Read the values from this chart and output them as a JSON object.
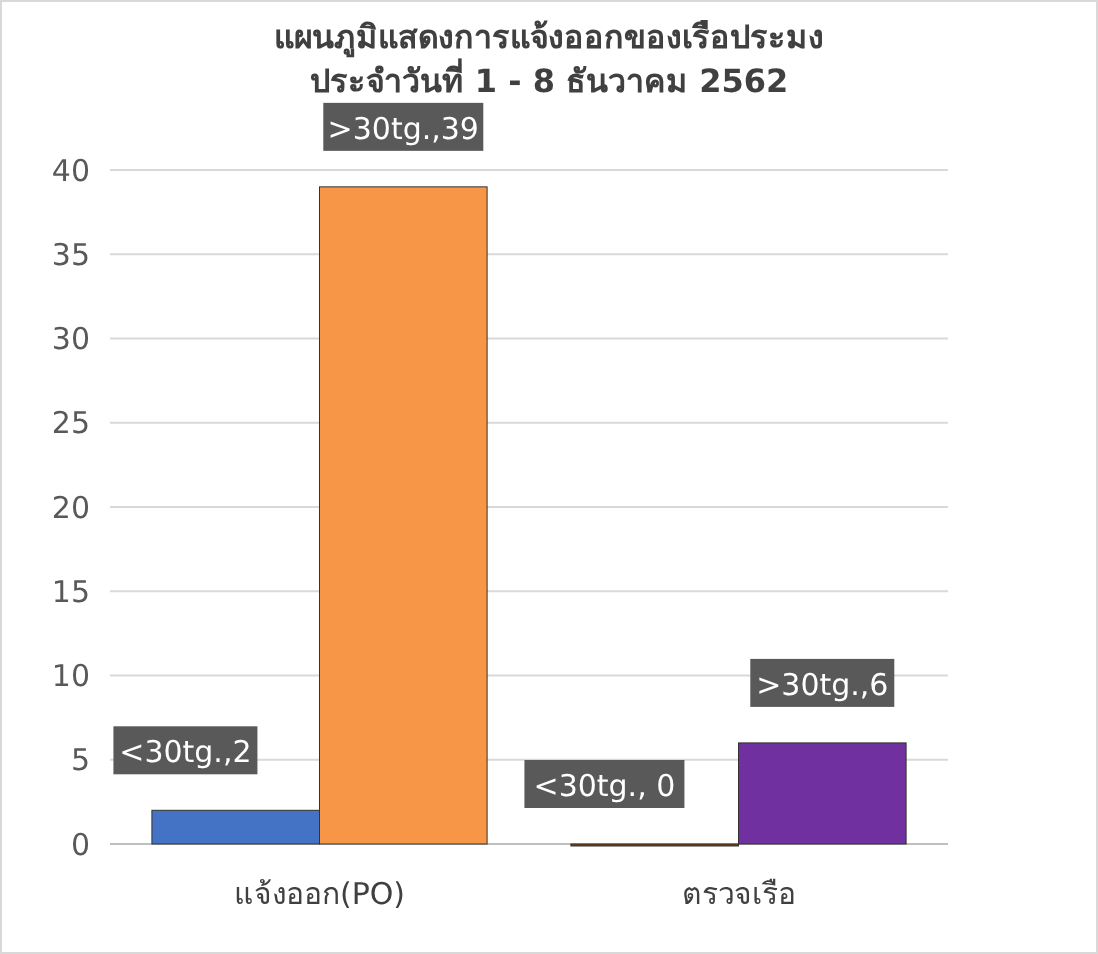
{
  "chart_data": {
    "type": "bar",
    "title": "แผนภูมิแสดงการแจ้งออกของเรือประมง\nประจำวันที่  1 - 8 ธันวาคม  2562",
    "categories": [
      "แจ้งออก(PO)",
      "ตรวจเรือ"
    ],
    "series": [
      {
        "colors": [
          "#4472c4",
          "#843c0c"
        ],
        "values": [
          2,
          0
        ],
        "value_labels": [
          "<30tg.,2",
          "<30tg., 0"
        ]
      },
      {
        "colors": [
          "#f79646",
          "#7030a0"
        ],
        "values": [
          39,
          6
        ],
        "value_labels": [
          ">30tg.,39",
          ">30tg.,6"
        ]
      }
    ],
    "ylim": [
      0,
      40
    ],
    "yticks": [
      0,
      5,
      10,
      15,
      20,
      25,
      30,
      35,
      40
    ],
    "grid": "y"
  }
}
